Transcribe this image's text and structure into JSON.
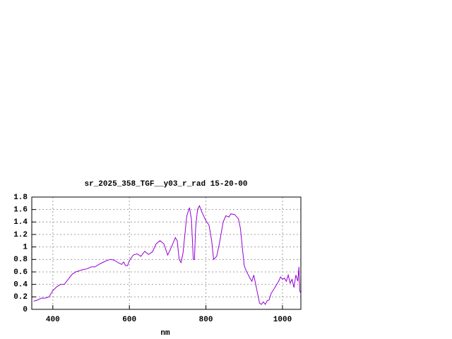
{
  "chart_data": {
    "type": "line",
    "title": "sr_2025_358_TGF__y03_r_rad 15-20-00",
    "x_label": "nm",
    "x": [
      350,
      360,
      370,
      380,
      390,
      400,
      410,
      420,
      430,
      440,
      450,
      460,
      470,
      480,
      490,
      500,
      510,
      520,
      530,
      540,
      550,
      560,
      570,
      580,
      585,
      590,
      595,
      600,
      610,
      620,
      630,
      640,
      650,
      660,
      670,
      680,
      690,
      700,
      710,
      720,
      725,
      730,
      735,
      740,
      745,
      750,
      757,
      762,
      767,
      770,
      773,
      778,
      783,
      790,
      800,
      808,
      815,
      820,
      828,
      835,
      845,
      852,
      860,
      865,
      875,
      885,
      890,
      895,
      900,
      905,
      915,
      920,
      925,
      930,
      935,
      940,
      945,
      950,
      955,
      960,
      965,
      970,
      980,
      990,
      995,
      1000,
      1005,
      1010,
      1015,
      1020,
      1025,
      1030,
      1035,
      1040,
      1043,
      1045,
      1048
    ],
    "series": [
      {
        "color": "#9400d3",
        "values": [
          0.13,
          0.15,
          0.18,
          0.18,
          0.2,
          0.3,
          0.36,
          0.4,
          0.4,
          0.48,
          0.56,
          0.6,
          0.62,
          0.64,
          0.65,
          0.68,
          0.68,
          0.72,
          0.75,
          0.78,
          0.8,
          0.79,
          0.75,
          0.72,
          0.76,
          0.7,
          0.7,
          0.78,
          0.87,
          0.89,
          0.85,
          0.93,
          0.88,
          0.92,
          1.05,
          1.1,
          1.05,
          0.87,
          1.0,
          1.15,
          1.1,
          0.8,
          0.75,
          0.9,
          1.2,
          1.5,
          1.63,
          1.45,
          0.8,
          0.8,
          1.3,
          1.6,
          1.66,
          1.55,
          1.42,
          1.35,
          1.1,
          0.8,
          0.85,
          1.05,
          1.4,
          1.5,
          1.48,
          1.53,
          1.52,
          1.45,
          1.3,
          1.0,
          0.7,
          0.62,
          0.5,
          0.45,
          0.55,
          0.4,
          0.25,
          0.1,
          0.08,
          0.12,
          0.08,
          0.14,
          0.15,
          0.25,
          0.35,
          0.45,
          0.52,
          0.48,
          0.5,
          0.45,
          0.55,
          0.42,
          0.48,
          0.35,
          0.55,
          0.45,
          0.68,
          0.3,
          0.25
        ]
      }
    ],
    "xlim": [
      345,
      1048
    ],
    "ylim": [
      0,
      1.8
    ],
    "xticks": [
      400,
      600,
      800,
      1000
    ],
    "yticks": [
      0,
      0.2,
      0.4,
      0.6,
      0.8,
      1,
      1.2,
      1.4,
      1.6,
      1.8
    ],
    "grid": true
  }
}
